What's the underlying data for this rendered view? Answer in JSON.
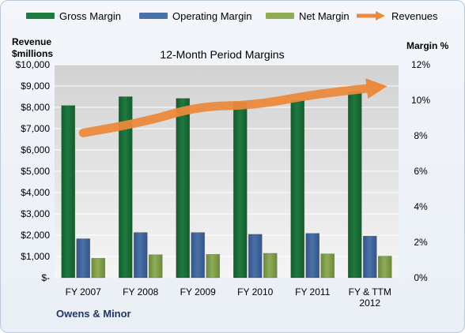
{
  "legend": {
    "gross": "Gross Margin",
    "operating": "Operating Margin",
    "net": "Net Margin",
    "revenues": "Revenues"
  },
  "left_axis_title": {
    "line1": "Revenue",
    "line2": "$millions"
  },
  "right_axis_title": "Margin %",
  "company": "Owens & Minor",
  "colors": {
    "gross": "#1e7a3f",
    "operating": "#4a72a8",
    "net": "#8fac56",
    "revenues": "#ea8a3c",
    "plot_bg_top": "#d2d2d2",
    "plot_bg_bottom": "#f5f5f5"
  },
  "chart_data": {
    "type": "bar",
    "title": "12-Month Period Margins",
    "categories": [
      [
        "FY 2007"
      ],
      [
        "FY 2008"
      ],
      [
        "FY 2009"
      ],
      [
        "FY 2010"
      ],
      [
        "FY 2011"
      ],
      [
        "FY & TTM",
        "2012"
      ]
    ],
    "left_axis": {
      "label": "Revenue $millions",
      "min": 0,
      "max": 10000,
      "step": 1000,
      "tick_labels": [
        "$-",
        "$1,000",
        "$2,000",
        "$3,000",
        "$4,000",
        "$5,000",
        "$6,000",
        "$7,000",
        "$8,000",
        "$9,000",
        "$10,000"
      ]
    },
    "right_axis": {
      "label": "Margin %",
      "min": 0,
      "max": 12,
      "step": 2,
      "tick_labels": [
        "0%",
        "2%",
        "4%",
        "6%",
        "8%",
        "10%",
        "12%"
      ]
    },
    "series": [
      {
        "name": "Gross Margin",
        "kind": "bar",
        "axis": "right",
        "values": [
          9.7,
          10.2,
          10.1,
          9.9,
          10.0,
          10.5
        ]
      },
      {
        "name": "Operating Margin",
        "kind": "bar",
        "axis": "right",
        "values": [
          2.2,
          2.55,
          2.55,
          2.45,
          2.5,
          2.35
        ]
      },
      {
        "name": "Net Margin",
        "kind": "bar",
        "axis": "right",
        "values": [
          1.1,
          1.3,
          1.32,
          1.38,
          1.35,
          1.22
        ]
      },
      {
        "name": "Revenues",
        "kind": "line",
        "axis": "left",
        "values": [
          6800,
          7250,
          8050,
          8100,
          8600,
          8900
        ]
      }
    ],
    "grid": true,
    "legend_position": "top"
  }
}
